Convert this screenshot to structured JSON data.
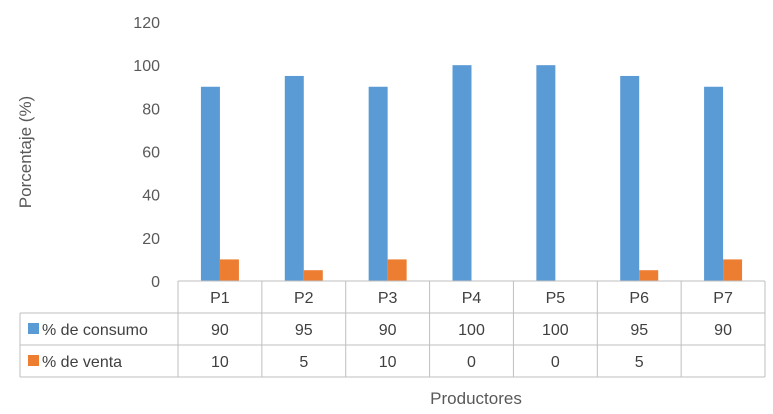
{
  "chart_data": {
    "type": "bar",
    "categories": [
      "P1",
      "P2",
      "P3",
      "P4",
      "P5",
      "P6",
      "P7"
    ],
    "series": [
      {
        "name": "% de consumo",
        "color": "#5B9BD5",
        "values": [
          90,
          95,
          90,
          100,
          100,
          95,
          90
        ],
        "labels": [
          "90",
          "95",
          "90",
          "100",
          "100",
          "95",
          "90"
        ]
      },
      {
        "name": "% de venta",
        "color": "#ED7D31",
        "values": [
          10,
          5,
          10,
          0,
          0,
          5,
          10
        ],
        "labels": [
          "10",
          "5",
          "10",
          "0",
          "0",
          "5",
          ""
        ]
      }
    ],
    "xlabel": "Productores",
    "ylabel": "Porcentaje (%)",
    "ylim": [
      0,
      120
    ],
    "yticks": [
      "0",
      "20",
      "40",
      "60",
      "80",
      "100",
      "120"
    ],
    "grid": false,
    "legend": "data table"
  }
}
